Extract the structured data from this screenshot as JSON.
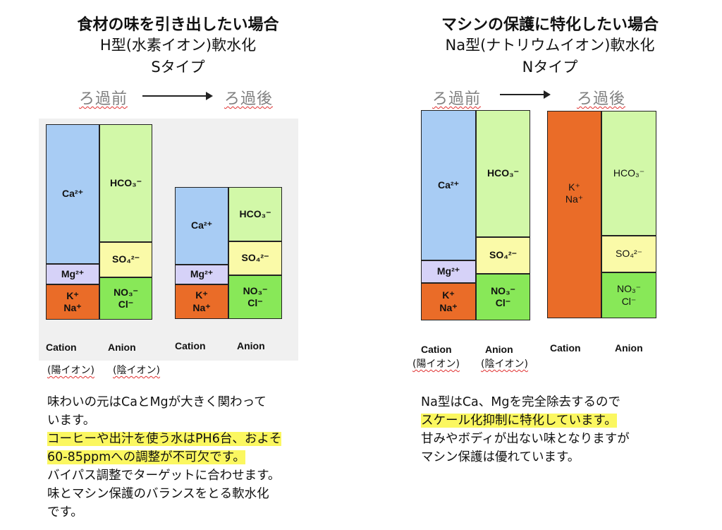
{
  "left": {
    "title": "食材の味を引き出したい場合",
    "type_line": "H型(水素イオン)軟水化",
    "type_code": "Sタイプ",
    "before_label": "ろ過前",
    "after_label": "ろ過後",
    "before": {
      "cation": {
        "ca": "Ca²⁺",
        "mg": "Mg²⁺",
        "k": "K⁺",
        "na": "Na⁺"
      },
      "anion": {
        "hco3": "HCO₃⁻",
        "so4": "SO₄²⁻",
        "no3": "NO₃⁻",
        "cl": "Cl⁻"
      }
    },
    "after": {
      "cation": {
        "ca": "Ca²⁺",
        "mg": "Mg²⁺",
        "k": "K⁺",
        "na": "Na⁺"
      },
      "anion": {
        "hco3": "HCO₃⁻",
        "so4": "SO₄²⁻",
        "no3": "NO₃⁻",
        "cl": "Cl⁻"
      }
    },
    "axis": {
      "cation": "Cation",
      "anion": "Anion"
    },
    "axis_jp": {
      "cation": "(陽イオン)",
      "anion": "(陰イオン)"
    },
    "text": {
      "line1": "味わいの元はCaとMgが大きく関わって",
      "line2": "います。",
      "hl1": "コーヒーや出汁を使う水はPH6台、およそ",
      "hl2": "60-85ppmへの調整が不可欠です。",
      "line3": "バイパス調整でターゲットに合わせます。",
      "line4": "味とマシン保護のバランスをとる軟水化",
      "line5": "です。"
    }
  },
  "right": {
    "title": "マシンの保護に特化したい場合",
    "type_line": "Na型(ナトリウムイオン)軟水化",
    "type_code": "Nタイプ",
    "before_label": "ろ過前",
    "after_label": "ろ過後",
    "before": {
      "cation": {
        "ca": "Ca²⁺",
        "mg": "Mg²⁺",
        "k": "K⁺",
        "na": "Na⁺"
      },
      "anion": {
        "hco3": "HCO₃⁻",
        "so4": "SO₄²⁻",
        "no3": "NO₃⁻",
        "cl": "Cl⁻"
      }
    },
    "after": {
      "cation": {
        "k": "K⁺",
        "na": "Na⁺"
      },
      "anion": {
        "hco3": "HCO₃⁻",
        "so4": "SO₄²⁻",
        "no3": "NO₃⁻",
        "cl": "Cl⁻"
      }
    },
    "axis": {
      "cation": "Cation",
      "anion": "Anion"
    },
    "axis_jp": {
      "cation": "(陽イオン)",
      "anion": "(陰イオン)"
    },
    "text": {
      "line1": "Na型はCa、Mgを完全除去するので",
      "hl1": "スケール化抑制に特化しています。",
      "line2": "甘みやボディが出ない味となりますが",
      "line3": "マシン保護は優れています。"
    }
  }
}
